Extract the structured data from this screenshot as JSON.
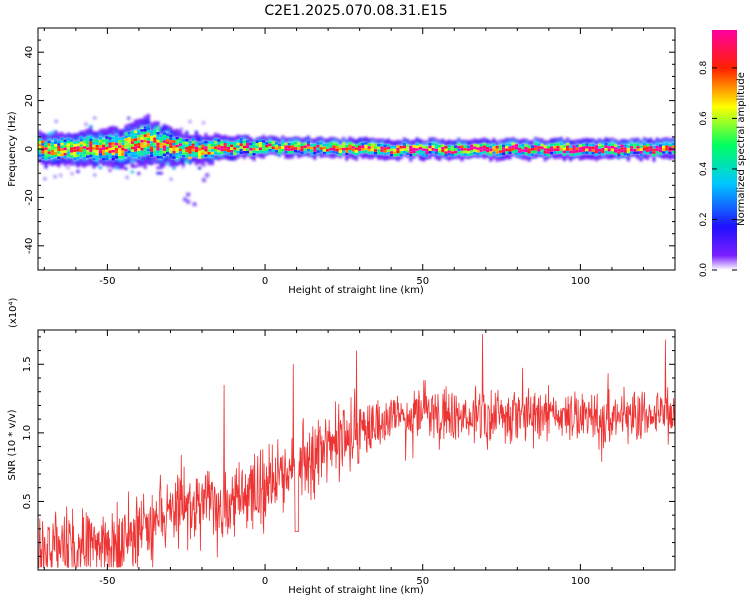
{
  "title": "C2E1.2025.070.08.31.E15",
  "chart_data": [
    {
      "type": "heatmap",
      "xlabel": "Height of straight line (km)",
      "ylabel": "Frequency (Hz)",
      "xlim": [
        -72,
        130
      ],
      "ylim": [
        -50,
        50
      ],
      "xticks": [
        -50,
        0,
        50,
        100
      ],
      "yticks": [
        -40,
        -20,
        0,
        20,
        40
      ],
      "colorbar": {
        "label": "Normalized spectral amplitude",
        "range": [
          0,
          0.95
        ],
        "ticks": [
          0.0,
          0.2,
          0.4,
          0.6,
          0.8
        ],
        "colormap": [
          "#ffffff",
          "#6a00ff",
          "#0000ff",
          "#00c8ff",
          "#00ff60",
          "#ffff00",
          "#ff2000",
          "#ff00a0"
        ]
      },
      "band": {
        "center_freq": [
          {
            "x": -72,
            "f": 0
          },
          {
            "x": -60,
            "f": 0
          },
          {
            "x": -45,
            "f": 1
          },
          {
            "x": -38,
            "f": 3
          },
          {
            "x": -30,
            "f": 1
          },
          {
            "x": -22,
            "f": 0
          },
          {
            "x": 0,
            "f": 1
          },
          {
            "x": 40,
            "f": 0
          },
          {
            "x": 130,
            "f": 0
          }
        ],
        "half_width": [
          {
            "x": -72,
            "w": 6
          },
          {
            "x": -45,
            "w": 8
          },
          {
            "x": -38,
            "w": 10
          },
          {
            "x": -25,
            "w": 6
          },
          {
            "x": 0,
            "w": 4
          },
          {
            "x": 130,
            "w": 4
          }
        ]
      }
    },
    {
      "type": "line",
      "xlabel": "Height of straight line (km)",
      "ylabel": "SNR (10 * v/v)",
      "y_multiplier": "(x10⁴)",
      "xlim": [
        -72,
        130
      ],
      "ylim": [
        0,
        1.75
      ],
      "xticks": [
        -50,
        0,
        50,
        100
      ],
      "yticks": [
        0.5,
        1.0,
        1.5
      ],
      "series": [
        {
          "color": "#ee3333",
          "trend": [
            {
              "x": -72,
              "y": 0.12
            },
            {
              "x": -60,
              "y": 0.18
            },
            {
              "x": -45,
              "y": 0.22
            },
            {
              "x": -35,
              "y": 0.35
            },
            {
              "x": -25,
              "y": 0.45
            },
            {
              "x": -15,
              "y": 0.5
            },
            {
              "x": 0,
              "y": 0.6
            },
            {
              "x": 10,
              "y": 0.75
            },
            {
              "x": 20,
              "y": 0.92
            },
            {
              "x": 30,
              "y": 1.05
            },
            {
              "x": 40,
              "y": 1.1
            },
            {
              "x": 60,
              "y": 1.12
            },
            {
              "x": 80,
              "y": 1.12
            },
            {
              "x": 100,
              "y": 1.12
            },
            {
              "x": 130,
              "y": 1.12
            }
          ],
          "peaks": [
            {
              "x": -13,
              "y": 1.35
            },
            {
              "x": 9,
              "y": 1.5
            },
            {
              "x": 29,
              "y": 1.6
            },
            {
              "x": 69,
              "y": 1.72
            },
            {
              "x": 127,
              "y": 1.68
            }
          ]
        }
      ]
    }
  ]
}
